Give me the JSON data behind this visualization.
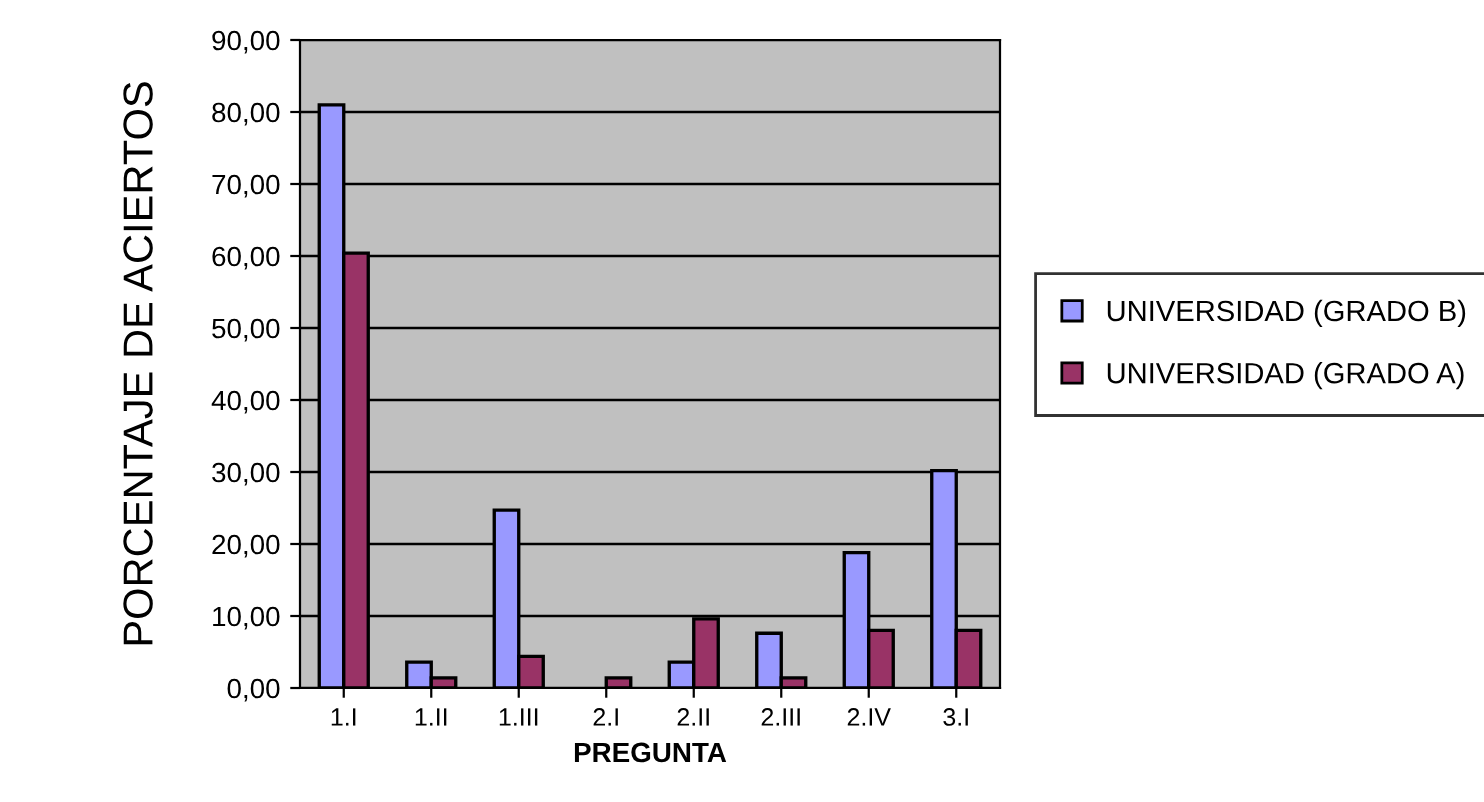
{
  "chart_data": {
    "type": "bar",
    "xlabel": "PREGUNTA",
    "ylabel": "PORCENTAJE DE ACIERTOS",
    "categories": [
      "1.I",
      "1.II",
      "1.III",
      "2.I",
      "2.II",
      "2.III",
      "2.IV",
      "3.I"
    ],
    "series": [
      {
        "name": "UNIVERSIDAD (GRADO B)",
        "color": "#9999ff",
        "values": [
          81.0,
          3.6,
          24.7,
          null,
          3.6,
          7.6,
          18.8,
          30.2
        ]
      },
      {
        "name": "UNIVERSIDAD (GRADO A)",
        "color": "#993366",
        "values": [
          60.4,
          1.4,
          4.4,
          1.4,
          9.6,
          1.4,
          8.0,
          8.0
        ]
      }
    ],
    "ylim": [
      0,
      90
    ],
    "yticks": [
      {
        "value": 0,
        "label": "0,00"
      },
      {
        "value": 10,
        "label": "10,00"
      },
      {
        "value": 20,
        "label": "20,00"
      },
      {
        "value": 30,
        "label": "30,00"
      },
      {
        "value": 40,
        "label": "40,00"
      },
      {
        "value": 50,
        "label": "50,00"
      },
      {
        "value": 60,
        "label": "60,00"
      },
      {
        "value": 70,
        "label": "70,00"
      },
      {
        "value": 80,
        "label": "80,00"
      },
      {
        "value": 90,
        "label": "90,00"
      }
    ],
    "grid": "y",
    "legend": "right"
  }
}
